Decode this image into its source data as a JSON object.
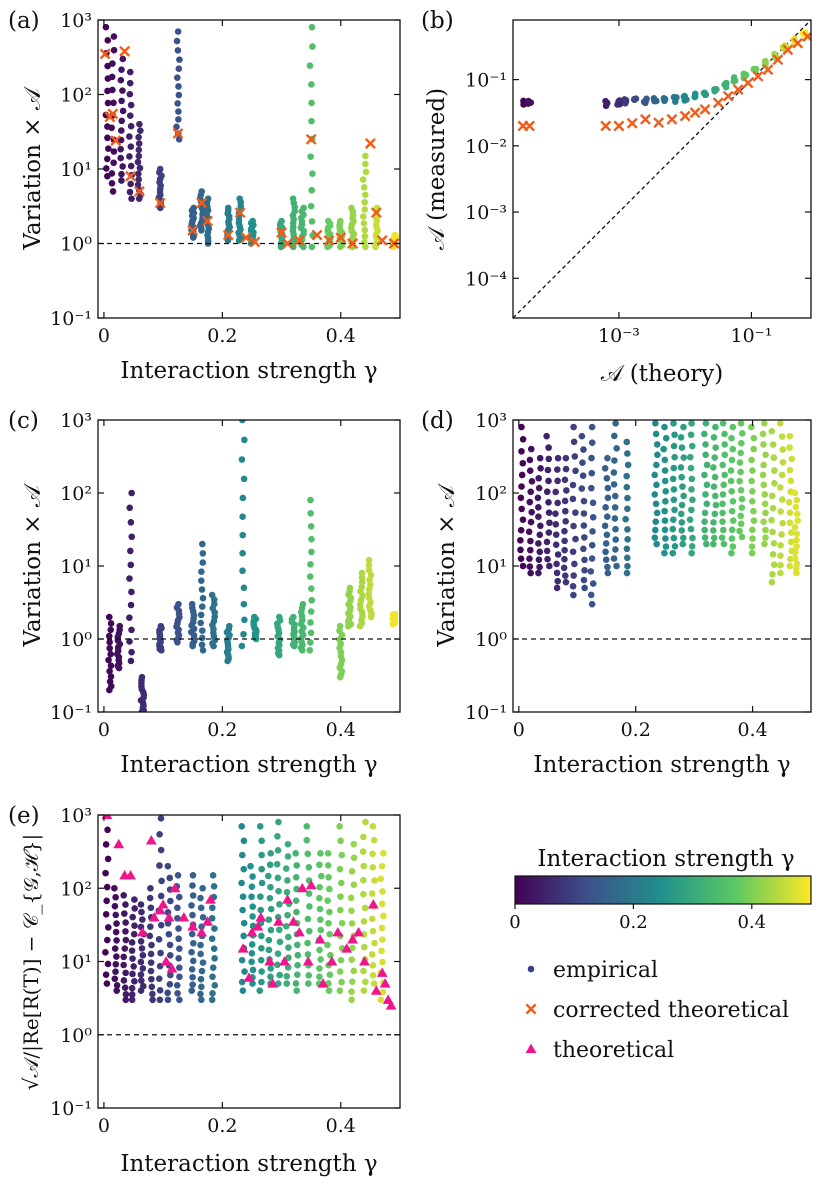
{
  "colors": {
    "viridis": [
      "#440154",
      "#3b528b",
      "#21918c",
      "#5ec962",
      "#fde725"
    ],
    "corrected": "#f25c19",
    "theoretical": "#f0158c",
    "empirical_legend": "#3b3d8c",
    "axis": "#111111"
  },
  "chart_data": [
    {
      "panel": "a",
      "panel_label": "(a)",
      "type": "scatter",
      "xlabel": "Interaction strength γ",
      "ylabel": "Variation × 𝒜",
      "xlim": [
        -0.01,
        0.5
      ],
      "ylim": [
        0.1,
        1000
      ],
      "yscale": "log",
      "xticks": [
        0,
        0.2,
        0.4
      ],
      "xtick_labels": [
        "0",
        "0.2",
        "0.4"
      ],
      "yticks": [
        0.1,
        1,
        10,
        100,
        1000
      ],
      "ytick_labels": [
        "10⁻¹",
        "10⁰",
        "10¹",
        "10²",
        "10³"
      ],
      "hline": 1,
      "empirical_groups": [
        {
          "g": 0.005,
          "lo": 8,
          "hi": 800
        },
        {
          "g": 0.015,
          "lo": 5,
          "hi": 600
        },
        {
          "g": 0.03,
          "lo": 7,
          "hi": 300
        },
        {
          "g": 0.045,
          "lo": 4,
          "hi": 200
        },
        {
          "g": 0.06,
          "lo": 4,
          "hi": 40
        },
        {
          "g": 0.095,
          "lo": 3,
          "hi": 10
        },
        {
          "g": 0.125,
          "lo": 25,
          "hi": 700
        },
        {
          "g": 0.15,
          "lo": 1.2,
          "hi": 3
        },
        {
          "g": 0.165,
          "lo": 1.5,
          "hi": 5
        },
        {
          "g": 0.175,
          "lo": 1.0,
          "hi": 4
        },
        {
          "g": 0.21,
          "lo": 1.1,
          "hi": 3
        },
        {
          "g": 0.23,
          "lo": 1.1,
          "hi": 4
        },
        {
          "g": 0.25,
          "lo": 1.0,
          "hi": 2
        },
        {
          "g": 0.3,
          "lo": 0.9,
          "hi": 2
        },
        {
          "g": 0.32,
          "lo": 0.9,
          "hi": 4
        },
        {
          "g": 0.335,
          "lo": 0.9,
          "hi": 3
        },
        {
          "g": 0.35,
          "lo": 0.9,
          "hi": 800
        },
        {
          "g": 0.38,
          "lo": 0.9,
          "hi": 2
        },
        {
          "g": 0.4,
          "lo": 0.9,
          "hi": 2
        },
        {
          "g": 0.42,
          "lo": 0.9,
          "hi": 3
        },
        {
          "g": 0.44,
          "lo": 0.9,
          "hi": 15
        },
        {
          "g": 0.46,
          "lo": 0.9,
          "hi": 3
        },
        {
          "g": 0.49,
          "lo": 0.9,
          "hi": 1.3
        }
      ],
      "corrected_x": [
        0.002,
        0.01,
        0.015,
        0.02,
        0.035,
        0.045,
        0.06,
        0.095,
        0.125,
        0.15,
        0.165,
        0.175,
        0.21,
        0.23,
        0.24,
        0.255,
        0.3,
        0.31,
        0.33,
        0.35,
        0.36,
        0.38,
        0.4,
        0.42,
        0.45,
        0.46,
        0.47,
        0.49
      ],
      "corrected_y": [
        350,
        50,
        55,
        24,
        380,
        8,
        5,
        3.5,
        30,
        1.5,
        3.5,
        2,
        1.3,
        2.6,
        1.2,
        1.05,
        1.4,
        1.0,
        1.1,
        25,
        1.3,
        1.1,
        1.2,
        1.0,
        22,
        2.6,
        1.1,
        1.0
      ]
    },
    {
      "panel": "b",
      "panel_label": "(b)",
      "type": "scatter",
      "xlabel": "𝒜 (theory)",
      "ylabel": "𝒜 (measured)",
      "xlim_log10": [
        -4.6,
        -0.1
      ],
      "ylim_log10": [
        -4.6,
        -0.1
      ],
      "xscale": "log",
      "yscale": "log",
      "xticks_log10": [
        -3,
        -1
      ],
      "xtick_labels": [
        "10⁻³",
        "10⁻¹"
      ],
      "yticks_log10": [
        -4,
        -3,
        -2,
        -1
      ],
      "ytick_labels": [
        "10⁻⁴",
        "10⁻³",
        "10⁻²",
        "10⁻¹"
      ],
      "diagonal": "y = x",
      "empirical_x_log10": [
        -4.45,
        -4.35,
        -3.2,
        -3.0,
        -2.9,
        -2.75,
        -2.6,
        -2.45,
        -2.3,
        -2.15,
        -2.0,
        -1.85,
        -1.7,
        -1.55,
        -1.4,
        -1.25,
        -1.1,
        -0.95,
        -0.8,
        -0.65,
        -0.5,
        -0.35,
        -0.2
      ],
      "empirical_y_log10": [
        -1.35,
        -1.35,
        -1.36,
        -1.35,
        -1.33,
        -1.32,
        -1.32,
        -1.31,
        -1.3,
        -1.3,
        -1.28,
        -1.25,
        -1.2,
        -1.15,
        -1.08,
        -1.0,
        -0.95,
        -0.85,
        -0.75,
        -0.65,
        -0.52,
        -0.42,
        -0.33
      ],
      "corrected_x_log10": [
        -4.45,
        -4.35,
        -3.2,
        -3.0,
        -2.8,
        -2.6,
        -2.4,
        -2.2,
        -2.0,
        -1.85,
        -1.7,
        -1.5,
        -1.35,
        -1.2,
        -1.05,
        -0.9,
        -0.75,
        -0.6,
        -0.45,
        -0.3,
        -0.15
      ],
      "corrected_y_log10": [
        -1.7,
        -1.7,
        -1.7,
        -1.7,
        -1.66,
        -1.6,
        -1.65,
        -1.6,
        -1.55,
        -1.5,
        -1.45,
        -1.35,
        -1.25,
        -1.15,
        -1.05,
        -0.95,
        -0.85,
        -0.7,
        -0.55,
        -0.45,
        -0.35
      ]
    },
    {
      "panel": "c",
      "panel_label": "(c)",
      "type": "scatter",
      "xlabel": "Interaction strength γ",
      "ylabel": "Variation × 𝒜",
      "xlim": [
        -0.01,
        0.5
      ],
      "ylim": [
        0.1,
        1000
      ],
      "yscale": "log",
      "xticks": [
        0,
        0.2,
        0.4
      ],
      "xtick_labels": [
        "0",
        "0.2",
        "0.4"
      ],
      "yticks": [
        0.1,
        1,
        10,
        100,
        1000
      ],
      "ytick_labels": [
        "10⁻¹",
        "10⁰",
        "10¹",
        "10²",
        "10³"
      ],
      "hline": 1,
      "empirical_groups": [
        {
          "g": 0.01,
          "lo": 0.2,
          "hi": 2
        },
        {
          "g": 0.025,
          "lo": 0.4,
          "hi": 1.5
        },
        {
          "g": 0.045,
          "lo": 0.5,
          "hi": 100
        },
        {
          "g": 0.065,
          "lo": 0.1,
          "hi": 0.3
        },
        {
          "g": 0.095,
          "lo": 0.7,
          "hi": 1.5
        },
        {
          "g": 0.125,
          "lo": 0.9,
          "hi": 3
        },
        {
          "g": 0.15,
          "lo": 0.8,
          "hi": 3
        },
        {
          "g": 0.165,
          "lo": 0.7,
          "hi": 20
        },
        {
          "g": 0.185,
          "lo": 0.8,
          "hi": 4
        },
        {
          "g": 0.21,
          "lo": 0.5,
          "hi": 1.5
        },
        {
          "g": 0.235,
          "lo": 0.8,
          "hi": 1000
        },
        {
          "g": 0.255,
          "lo": 1.0,
          "hi": 2
        },
        {
          "g": 0.295,
          "lo": 0.6,
          "hi": 2
        },
        {
          "g": 0.32,
          "lo": 0.8,
          "hi": 2
        },
        {
          "g": 0.335,
          "lo": 0.7,
          "hi": 3
        },
        {
          "g": 0.35,
          "lo": 0.7,
          "hi": 80
        },
        {
          "g": 0.4,
          "lo": 0.3,
          "hi": 1.5
        },
        {
          "g": 0.415,
          "lo": 1.5,
          "hi": 5
        },
        {
          "g": 0.435,
          "lo": 1.5,
          "hi": 8
        },
        {
          "g": 0.45,
          "lo": 2,
          "hi": 12
        },
        {
          "g": 0.49,
          "lo": 1.6,
          "hi": 2.2
        }
      ]
    },
    {
      "panel": "d",
      "panel_label": "(d)",
      "type": "scatter",
      "xlabel": "Interaction strength γ",
      "ylabel": "Variation × 𝒜",
      "xlim": [
        -0.01,
        0.5
      ],
      "ylim": [
        0.1,
        1000
      ],
      "yscale": "log",
      "xticks": [
        0,
        0.2,
        0.4
      ],
      "xtick_labels": [
        "0",
        "0.2",
        "0.4"
      ],
      "yticks": [
        0.1,
        1,
        10,
        100,
        1000
      ],
      "ytick_labels": [
        "10⁻¹",
        "10⁰",
        "10¹",
        "10²",
        "10³"
      ],
      "hline": 1,
      "empirical_groups": [
        {
          "g": 0.005,
          "lo": 10,
          "hi": 800
        },
        {
          "g": 0.02,
          "lo": 8,
          "hi": 400
        },
        {
          "g": 0.035,
          "lo": 8,
          "hi": 300
        },
        {
          "g": 0.05,
          "lo": 10,
          "hi": 600
        },
        {
          "g": 0.065,
          "lo": 5,
          "hi": 300
        },
        {
          "g": 0.08,
          "lo": 6,
          "hi": 300
        },
        {
          "g": 0.095,
          "lo": 4,
          "hi": 800
        },
        {
          "g": 0.11,
          "lo": 5,
          "hi": 600
        },
        {
          "g": 0.125,
          "lo": 3,
          "hi": 800
        },
        {
          "g": 0.15,
          "lo": 8,
          "hi": 300
        },
        {
          "g": 0.165,
          "lo": 10,
          "hi": 900
        },
        {
          "g": 0.185,
          "lo": 8,
          "hi": 500
        },
        {
          "g": 0.235,
          "lo": 20,
          "hi": 900
        },
        {
          "g": 0.25,
          "lo": 15,
          "hi": 800
        },
        {
          "g": 0.265,
          "lo": 15,
          "hi": 900
        },
        {
          "g": 0.28,
          "lo": 20,
          "hi": 800
        },
        {
          "g": 0.295,
          "lo": 15,
          "hi": 900
        },
        {
          "g": 0.32,
          "lo": 20,
          "hi": 900
        },
        {
          "g": 0.335,
          "lo": 20,
          "hi": 800
        },
        {
          "g": 0.35,
          "lo": 20,
          "hi": 900
        },
        {
          "g": 0.365,
          "lo": 15,
          "hi": 800
        },
        {
          "g": 0.38,
          "lo": 25,
          "hi": 900
        },
        {
          "g": 0.4,
          "lo": 15,
          "hi": 800
        },
        {
          "g": 0.42,
          "lo": 20,
          "hi": 900
        },
        {
          "g": 0.435,
          "lo": 6,
          "hi": 700
        },
        {
          "g": 0.45,
          "lo": 8,
          "hi": 900
        },
        {
          "g": 0.465,
          "lo": 10,
          "hi": 600
        },
        {
          "g": 0.475,
          "lo": 8,
          "hi": 100
        }
      ]
    },
    {
      "panel": "e",
      "panel_label": "(e)",
      "type": "scatter",
      "xlabel": "Interaction strength γ",
      "ylabel": "√𝒜/|Re[R(T)] − 𝒞_{𝒢,ℋ}|",
      "xlim": [
        -0.01,
        0.5
      ],
      "ylim": [
        0.1,
        1000
      ],
      "yscale": "log",
      "xticks": [
        0,
        0.2,
        0.4
      ],
      "xtick_labels": [
        "0",
        "0.2",
        "0.4"
      ],
      "yticks": [
        0.1,
        1,
        10,
        100,
        1000
      ],
      "ytick_labels": [
        "10⁻¹",
        "10⁰",
        "10¹",
        "10²",
        "10³"
      ],
      "hline": 1,
      "empirical_groups": [
        {
          "g": 0.005,
          "lo": 5,
          "hi": 1000
        },
        {
          "g": 0.02,
          "lo": 4,
          "hi": 100
        },
        {
          "g": 0.035,
          "lo": 3,
          "hi": 80
        },
        {
          "g": 0.05,
          "lo": 3,
          "hi": 70
        },
        {
          "g": 0.065,
          "lo": 4,
          "hi": 60
        },
        {
          "g": 0.08,
          "lo": 3,
          "hi": 100
        },
        {
          "g": 0.095,
          "lo": 3,
          "hi": 900
        },
        {
          "g": 0.11,
          "lo": 3,
          "hi": 200
        },
        {
          "g": 0.125,
          "lo": 3,
          "hi": 150
        },
        {
          "g": 0.15,
          "lo": 4,
          "hi": 150
        },
        {
          "g": 0.165,
          "lo": 3,
          "hi": 100
        },
        {
          "g": 0.185,
          "lo": 3,
          "hi": 150
        },
        {
          "g": 0.235,
          "lo": 4,
          "hi": 700
        },
        {
          "g": 0.25,
          "lo": 5,
          "hi": 200
        },
        {
          "g": 0.265,
          "lo": 4,
          "hi": 700
        },
        {
          "g": 0.28,
          "lo": 5,
          "hi": 300
        },
        {
          "g": 0.295,
          "lo": 5,
          "hi": 800
        },
        {
          "g": 0.31,
          "lo": 5,
          "hi": 400
        },
        {
          "g": 0.325,
          "lo": 4,
          "hi": 300
        },
        {
          "g": 0.345,
          "lo": 5,
          "hi": 700
        },
        {
          "g": 0.365,
          "lo": 5,
          "hi": 300
        },
        {
          "g": 0.38,
          "lo": 4,
          "hi": 300
        },
        {
          "g": 0.4,
          "lo": 4,
          "hi": 700
        },
        {
          "g": 0.42,
          "lo": 3,
          "hi": 400
        },
        {
          "g": 0.44,
          "lo": 4,
          "hi": 800
        },
        {
          "g": 0.455,
          "lo": 5,
          "hi": 700
        },
        {
          "g": 0.47,
          "lo": 3,
          "hi": 300
        }
      ],
      "theoretical_x": [
        0.005,
        0.025,
        0.035,
        0.045,
        0.065,
        0.08,
        0.085,
        0.095,
        0.1,
        0.105,
        0.11,
        0.115,
        0.12,
        0.135,
        0.15,
        0.165,
        0.175,
        0.18,
        0.235,
        0.245,
        0.25,
        0.26,
        0.265,
        0.28,
        0.285,
        0.295,
        0.305,
        0.31,
        0.32,
        0.33,
        0.335,
        0.345,
        0.35,
        0.365,
        0.37,
        0.385,
        0.395,
        0.41,
        0.42,
        0.43,
        0.44,
        0.455,
        0.46,
        0.47,
        0.475,
        0.48,
        0.485
      ],
      "theoretical_y": [
        1000,
        400,
        150,
        150,
        25,
        450,
        40,
        50,
        60,
        10,
        40,
        8,
        100,
        40,
        30,
        25,
        35,
        70,
        15,
        6,
        25,
        30,
        40,
        10,
        5,
        35,
        10,
        70,
        35,
        25,
        100,
        10,
        110,
        20,
        5,
        10,
        25,
        15,
        20,
        25,
        10,
        60,
        4,
        7,
        5,
        3,
        2.5
      ]
    }
  ],
  "legend": {
    "colorbar_title": "Interaction strength γ",
    "colorbar_range": [
      0,
      0.5
    ],
    "colorbar_ticks": [
      0,
      0.2,
      0.4
    ],
    "colorbar_tick_labels": [
      "0",
      "0.2",
      "0.4"
    ],
    "entries": [
      {
        "marker": "circle",
        "label": "empirical"
      },
      {
        "marker": "cross",
        "label": "corrected theoretical"
      },
      {
        "marker": "triangle",
        "label": "theoretical"
      }
    ]
  }
}
